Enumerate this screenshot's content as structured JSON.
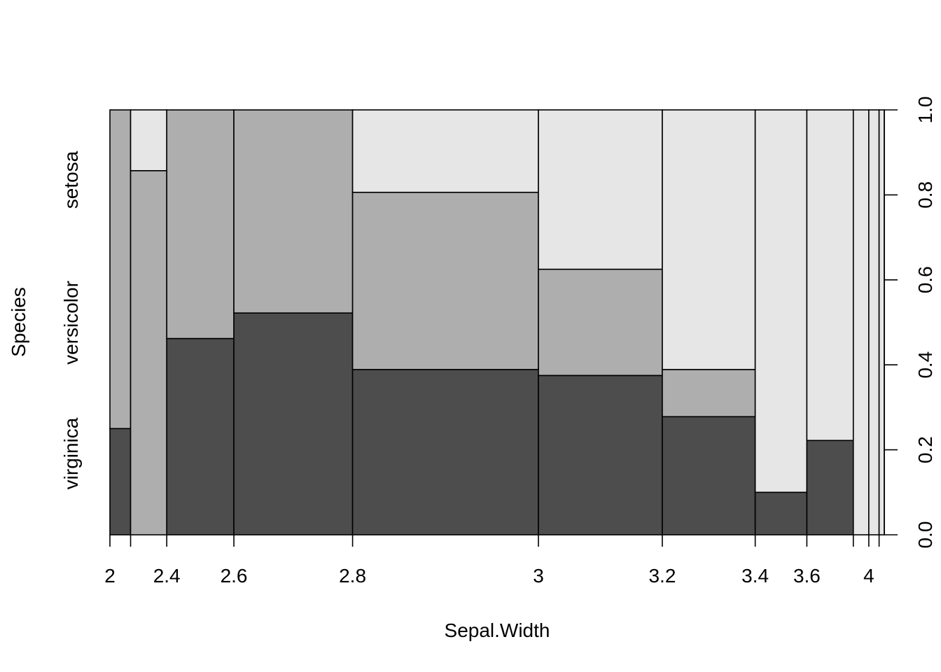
{
  "chart_data": {
    "type": "spineplot",
    "title": "",
    "xlabel": "Sepal.Width",
    "ylabel": "Species",
    "ylim": [
      0,
      1
    ],
    "x_tick_labels": [
      "2",
      "2.4",
      "2.6",
      "2.8",
      "3",
      "3.2",
      "3.4",
      "3.6",
      "4"
    ],
    "y_tick_labels": [
      "0.0",
      "0.2",
      "0.4",
      "0.6",
      "0.8",
      "1.0"
    ],
    "series_names": [
      "virginica",
      "versicolor",
      "setosa"
    ],
    "colors": {
      "virginica": "#4d4d4d",
      "versicolor": "#aeaeae",
      "setosa": "#e6e6e6"
    },
    "bins": [
      {
        "range": [
          2.0,
          2.2
        ],
        "width_share": 0.0267,
        "virginica": 0.25,
        "versicolor": 0.75,
        "setosa": 0.0
      },
      {
        "range": [
          2.2,
          2.4
        ],
        "width_share": 0.0467,
        "virginica": 0.0,
        "versicolor": 0.857,
        "setosa": 0.143
      },
      {
        "range": [
          2.4,
          2.6
        ],
        "width_share": 0.0867,
        "virginica": 0.462,
        "versicolor": 0.538,
        "setosa": 0.0
      },
      {
        "range": [
          2.6,
          2.8
        ],
        "width_share": 0.1533,
        "virginica": 0.522,
        "versicolor": 0.478,
        "setosa": 0.0
      },
      {
        "range": [
          2.8,
          3.0
        ],
        "width_share": 0.24,
        "virginica": 0.389,
        "versicolor": 0.417,
        "setosa": 0.194
      },
      {
        "range": [
          3.0,
          3.2
        ],
        "width_share": 0.16,
        "virginica": 0.375,
        "versicolor": 0.25,
        "setosa": 0.375
      },
      {
        "range": [
          3.2,
          3.4
        ],
        "width_share": 0.12,
        "virginica": 0.278,
        "versicolor": 0.111,
        "setosa": 0.611
      },
      {
        "range": [
          3.4,
          3.6
        ],
        "width_share": 0.0667,
        "virginica": 0.1,
        "versicolor": 0.0,
        "setosa": 0.9
      },
      {
        "range": [
          3.6,
          3.8
        ],
        "width_share": 0.06,
        "virginica": 0.222,
        "versicolor": 0.0,
        "setosa": 0.778
      },
      {
        "range": [
          3.8,
          4.0
        ],
        "width_share": 0.02,
        "virginica": 0.0,
        "versicolor": 0.0,
        "setosa": 1.0
      },
      {
        "range": [
          4.0,
          4.2
        ],
        "width_share": 0.0133,
        "virginica": 0.0,
        "versicolor": 0.0,
        "setosa": 1.0
      },
      {
        "range": [
          4.2,
          4.4
        ],
        "width_share": 0.0067,
        "virginica": 0.0,
        "versicolor": 0.0,
        "setosa": 1.0
      }
    ]
  }
}
